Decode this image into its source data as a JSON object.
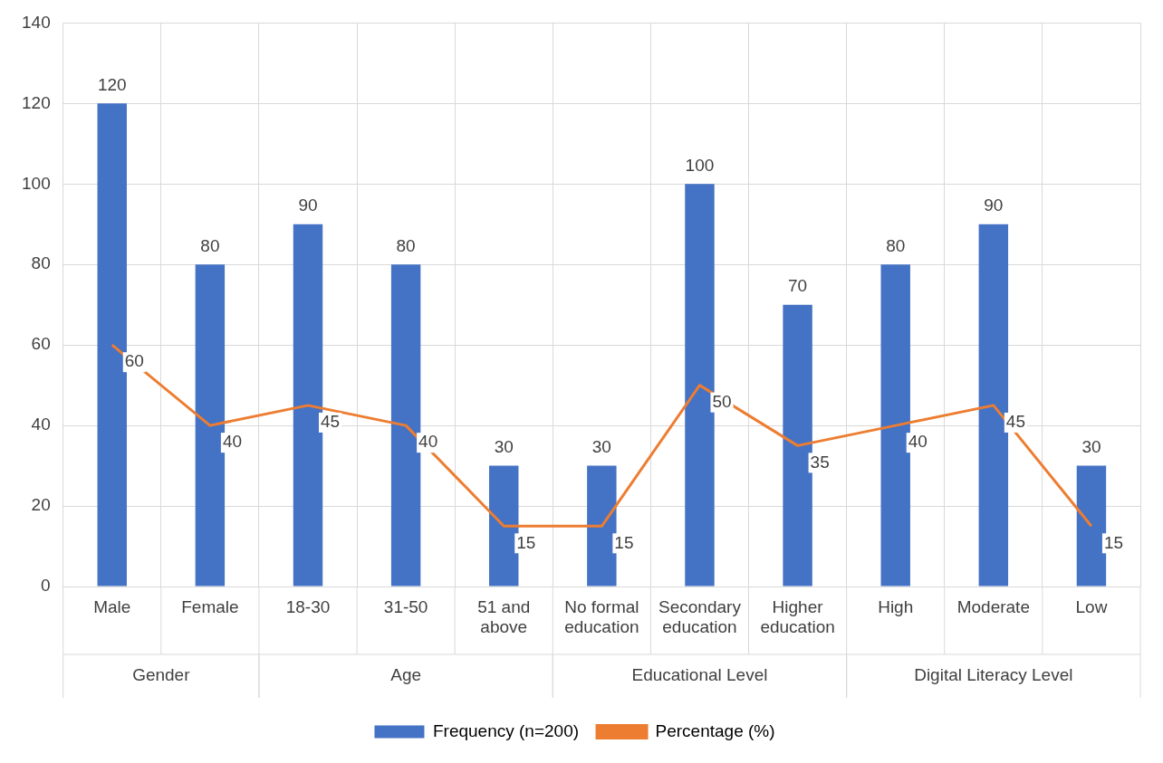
{
  "chart_data": {
    "type": "bar",
    "categories": [
      "Male",
      "Female",
      "18-30",
      "31-50",
      "51 and above",
      "No formal education",
      "Secondary education",
      "Higher education",
      "High",
      "Moderate",
      "Low"
    ],
    "series": [
      {
        "name": "Frequency (n=200)",
        "color": "#4472c4",
        "values": [
          120,
          80,
          90,
          80,
          30,
          30,
          100,
          70,
          80,
          90,
          30
        ]
      },
      {
        "name": "Percentage (%)",
        "type": "line",
        "color": "#ed7d31",
        "values": [
          60,
          40,
          45,
          40,
          15,
          15,
          50,
          35,
          40,
          45,
          15
        ]
      }
    ],
    "annotations": [
      "Gender",
      "Age",
      "Educational Level",
      "Digital Literacy Level"
    ],
    "ylim": [
      0,
      140
    ],
    "yticks": [
      0,
      20,
      40,
      60,
      80,
      100,
      120,
      140
    ],
    "grid": true,
    "legend": "bottom",
    "data_labels": true,
    "marker": "none",
    "line_style": "solid"
  }
}
